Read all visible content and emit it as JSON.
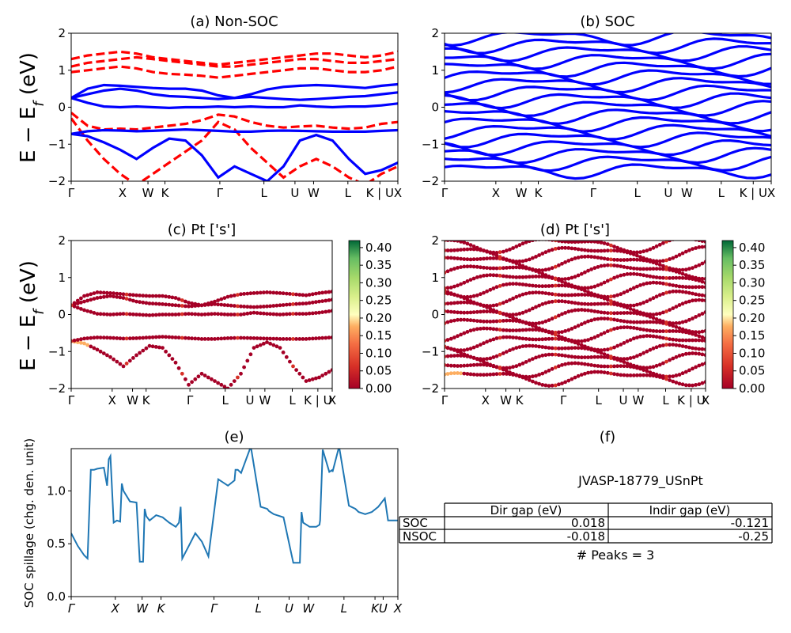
{
  "figure_id": "JVASP-18779_USnPt",
  "ylabel_band": "E − E",
  "ylabel_band_sub": "f",
  "ylabel_band_unit": " (eV)",
  "k_labels_band": [
    "Γ",
    "X",
    "W",
    "K",
    "Γ",
    "L",
    "U",
    "W",
    "L",
    "K | U",
    "X"
  ],
  "k_labels_spill": [
    "Γ",
    "X",
    "W",
    "K",
    "Γ",
    "L",
    "U",
    "W",
    "L",
    "K",
    "U",
    "X"
  ],
  "colorbar_ticks": [
    "0.00",
    "0.05",
    "0.10",
    "0.15",
    "0.20",
    "0.25",
    "0.30",
    "0.35",
    "0.40"
  ],
  "colors": {
    "nonsoc_dashed": "#ff0000",
    "band": "#0000ff",
    "spillage": "#1f77b4",
    "cmap_low": "#a50026",
    "cmap_mid": "#ffffbf",
    "cmap_high": "#006837"
  },
  "chart_data": [
    {
      "panel": "a",
      "type": "line",
      "title": "(a) Non-SOC",
      "ylim": [
        -2,
        2
      ],
      "yticks": [
        "2",
        "1",
        "0",
        "−1",
        "−2"
      ],
      "series": [
        {
          "style": "solid",
          "values": [
            [
              -0.72,
              -0.78,
              -0.95,
              -1.15,
              -1.4,
              -1.1,
              -0.85,
              -0.9,
              -1.3,
              -1.9,
              -1.6,
              -1.8,
              -2.0,
              -1.6,
              -0.9,
              -0.75,
              -0.9,
              -1.4,
              -1.8,
              -1.7,
              -1.5
            ],
            [
              -0.72,
              -0.65,
              -0.62,
              -0.63,
              -0.65,
              -0.64,
              -0.62,
              -0.6,
              -0.62,
              -0.64,
              -0.66,
              -0.66,
              -0.64,
              -0.63,
              -0.64,
              -0.65,
              -0.66,
              -0.66,
              -0.66,
              -0.64,
              -0.62
            ],
            [
              0.25,
              0.12,
              0.02,
              0.0,
              0.02,
              0.0,
              -0.02,
              0.0,
              0.0,
              0.02,
              0.0,
              0.02,
              0.0,
              0.0,
              0.05,
              0.02,
              0.0,
              0.02,
              0.02,
              0.05,
              0.1
            ],
            [
              0.25,
              0.35,
              0.45,
              0.5,
              0.45,
              0.35,
              0.3,
              0.28,
              0.25,
              0.22,
              0.25,
              0.28,
              0.25,
              0.22,
              0.2,
              0.22,
              0.25,
              0.28,
              0.3,
              0.35,
              0.4
            ],
            [
              0.25,
              0.5,
              0.6,
              0.58,
              0.55,
              0.52,
              0.5,
              0.5,
              0.45,
              0.32,
              0.25,
              0.35,
              0.48,
              0.55,
              0.58,
              0.6,
              0.58,
              0.55,
              0.52,
              0.58,
              0.62
            ]
          ]
        }
      ]
    },
    {
      "panel": "b",
      "type": "line",
      "title": "(b) SOC",
      "ylim": [
        -2,
        2
      ],
      "yticks": [
        "2",
        "1",
        "0",
        "−1",
        "−2"
      ],
      "series": [
        {
          "style": "solid"
        }
      ]
    },
    {
      "panel": "c",
      "type": "scatter",
      "title": "(c)  Pt ['s']",
      "ylim": [
        -2,
        2
      ],
      "yticks": [
        "2",
        "1",
        "0",
        "−1",
        "−2"
      ],
      "colorbar": {
        "min": 0.0,
        "max": 0.42
      }
    },
    {
      "panel": "d",
      "type": "scatter",
      "title": "(d) Pt ['s']",
      "ylim": [
        -2,
        2
      ],
      "yticks": [
        "2",
        "1",
        "0",
        "−1",
        "−2"
      ],
      "colorbar": {
        "min": 0.0,
        "max": 0.42
      }
    },
    {
      "panel": "e",
      "type": "line",
      "title": "(e)",
      "ylabel": "SOC spillage (chg. den. unit)",
      "ylim": [
        0,
        1.4
      ],
      "yticks": [
        "0.0",
        "0.5",
        "1.0"
      ],
      "x": [
        0,
        0.02,
        0.04,
        0.05,
        0.06,
        0.07,
        0.08,
        0.1,
        0.11,
        0.115,
        0.12,
        0.13,
        0.14,
        0.15,
        0.155,
        0.16,
        0.18,
        0.2,
        0.21,
        0.22,
        0.225,
        0.23,
        0.24,
        0.26,
        0.28,
        0.3,
        0.32,
        0.33,
        0.335,
        0.34,
        0.36,
        0.38,
        0.4,
        0.42,
        0.45,
        0.48,
        0.5,
        0.503,
        0.51,
        0.52,
        0.55,
        0.58,
        0.6,
        0.605,
        0.61,
        0.62,
        0.65,
        0.68,
        0.7,
        0.705,
        0.71,
        0.73,
        0.75,
        0.76,
        0.762,
        0.77,
        0.79,
        0.8,
        0.8,
        0.82,
        0.85,
        0.87,
        0.88,
        0.9,
        0.92,
        0.94,
        0.96,
        0.97,
        0.973,
        0.975,
        0.98,
        1.0
      ],
      "values": [
        0.6,
        0.48,
        0.39,
        0.36,
        1.2,
        1.2,
        1.21,
        1.22,
        1.05,
        1.3,
        1.33,
        0.7,
        0.72,
        0.71,
        1.07,
        1.0,
        0.9,
        0.89,
        0.33,
        0.33,
        0.83,
        0.76,
        0.72,
        0.77,
        0.75,
        0.7,
        0.66,
        0.7,
        0.85,
        0.36,
        0.48,
        0.6,
        0.52,
        0.38,
        1.11,
        1.05,
        1.1,
        1.2,
        1.2,
        1.17,
        1.42,
        0.85,
        0.83,
        0.81,
        0.8,
        0.78,
        0.75,
        0.32,
        0.32,
        0.8,
        0.7,
        0.66,
        0.66,
        0.68,
        0.72,
        1.39,
        1.18,
        1.2,
        1.18,
        1.42,
        0.86,
        0.83,
        0.8,
        0.78,
        0.8,
        0.85,
        0.93,
        0.72,
        0.72,
        0.72,
        0.72,
        0.72
      ]
    },
    {
      "panel": "f",
      "type": "table",
      "title": "(f)",
      "caption": "JVASP-18779_USnPt",
      "columns": [
        "",
        "Dir gap (eV)",
        "Indir gap (eV)"
      ],
      "rows": [
        [
          "SOC",
          "0.018",
          "-0.121"
        ],
        [
          "NSOC",
          "-0.018",
          "-0.25"
        ]
      ],
      "footer": "# Peaks = 3"
    }
  ]
}
